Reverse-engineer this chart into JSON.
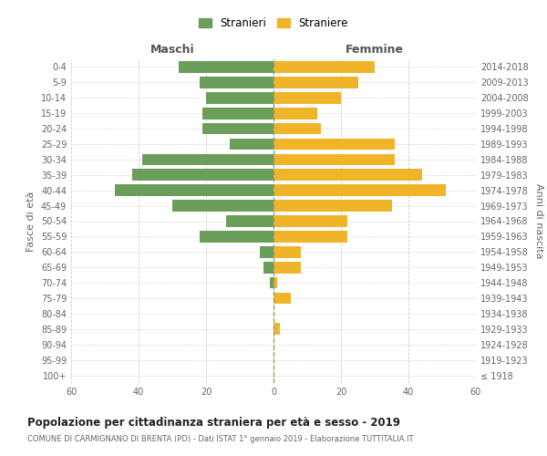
{
  "age_groups": [
    "100+",
    "95-99",
    "90-94",
    "85-89",
    "80-84",
    "75-79",
    "70-74",
    "65-69",
    "60-64",
    "55-59",
    "50-54",
    "45-49",
    "40-44",
    "35-39",
    "30-34",
    "25-29",
    "20-24",
    "15-19",
    "10-14",
    "5-9",
    "0-4"
  ],
  "birth_years": [
    "≤ 1918",
    "1919-1923",
    "1924-1928",
    "1929-1933",
    "1934-1938",
    "1939-1943",
    "1944-1948",
    "1949-1953",
    "1954-1958",
    "1959-1963",
    "1964-1968",
    "1969-1973",
    "1974-1978",
    "1979-1983",
    "1984-1988",
    "1989-1993",
    "1994-1998",
    "1999-2003",
    "2004-2008",
    "2009-2013",
    "2014-2018"
  ],
  "males": [
    0,
    0,
    0,
    0,
    0,
    0,
    1,
    3,
    4,
    22,
    14,
    30,
    47,
    42,
    39,
    13,
    21,
    21,
    20,
    22,
    28
  ],
  "females": [
    0,
    0,
    0,
    2,
    0,
    5,
    1,
    8,
    8,
    22,
    22,
    35,
    51,
    44,
    36,
    36,
    14,
    13,
    20,
    25,
    30
  ],
  "male_color": "#6a9e5a",
  "female_color": "#f0b429",
  "title_main": "Popolazione per cittadinanza straniera per età e sesso - 2019",
  "title_sub": "COMUNE DI CARMIGNANO DI BRENTA (PD) - Dati ISTAT 1° gennaio 2019 - Elaborazione TUTTITALIA.IT",
  "ylabel_left": "Fasce di età",
  "ylabel_right": "Anni di nascita",
  "legend_males": "Stranieri",
  "legend_females": "Straniere",
  "maschi_label": "Maschi",
  "femmine_label": "Femmine",
  "xlim": 60,
  "background_color": "#ffffff",
  "grid_color": "#cccccc"
}
